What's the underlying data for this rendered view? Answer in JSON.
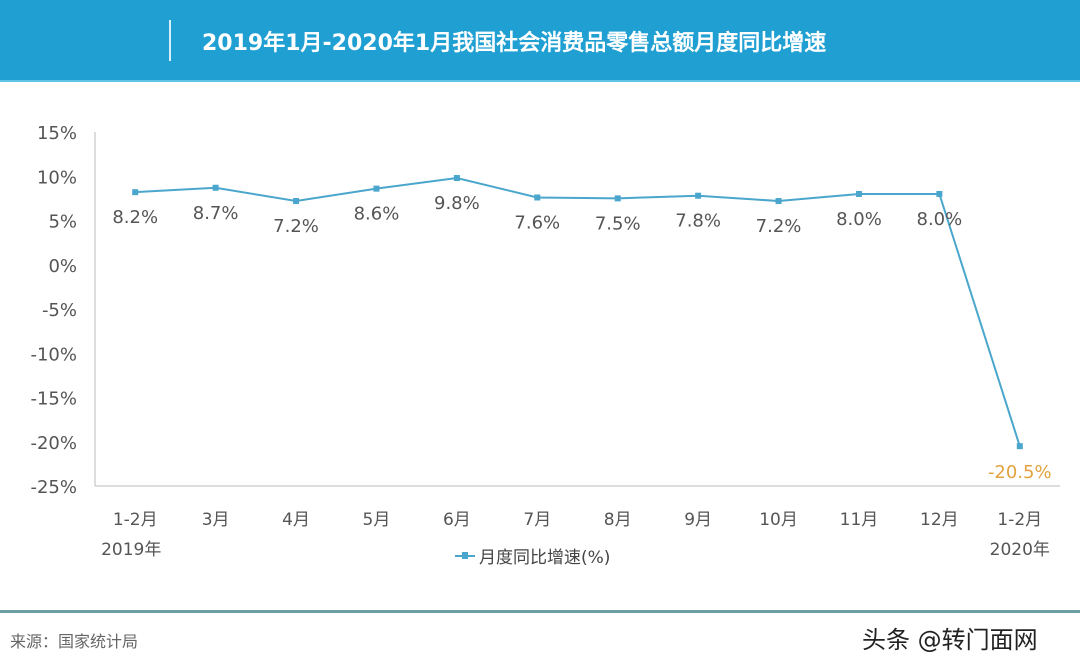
{
  "header": {
    "title": "2019年1月-2020年1月我国社会消费品零售总额月度同比增速"
  },
  "footer": {
    "source": "来源：国家统计局",
    "watermark": "头条 @转门面网"
  },
  "chart_data": {
    "type": "line",
    "title": "2019年1月-2020年1月我国社会消费品零售总额月度同比增速",
    "categories": [
      "1-2月",
      "3月",
      "4月",
      "5月",
      "6月",
      "7月",
      "8月",
      "9月",
      "10月",
      "11月",
      "12月",
      "1-2月"
    ],
    "category_sublabels": {
      "0": "2019年",
      "11": "2020年"
    },
    "series": [
      {
        "name": "月度同比增速(%)",
        "values": [
          8.2,
          8.7,
          7.2,
          8.6,
          9.8,
          7.6,
          7.5,
          7.8,
          7.2,
          8.0,
          8.0,
          -20.5
        ],
        "labels": [
          "8.2%",
          "8.7%",
          "7.2%",
          "8.6%",
          "9.8%",
          "7.6%",
          "7.5%",
          "7.8%",
          "7.2%",
          "8.0%",
          "8.0%",
          "-20.5%"
        ]
      }
    ],
    "yticks": [
      "15%",
      "10%",
      "5%",
      "0%",
      "-5%",
      "-10%",
      "-15%",
      "-20%",
      "-25%"
    ],
    "ytick_values": [
      15,
      10,
      5,
      0,
      -5,
      -10,
      -15,
      -20,
      -25
    ],
    "ylim": [
      -25,
      15
    ],
    "grid": false,
    "legend": "bottom",
    "colors": {
      "line": "#4aa6cc",
      "label": "#555555",
      "highlight_label": "#e3a23f",
      "header": "#1f9fd2"
    }
  }
}
